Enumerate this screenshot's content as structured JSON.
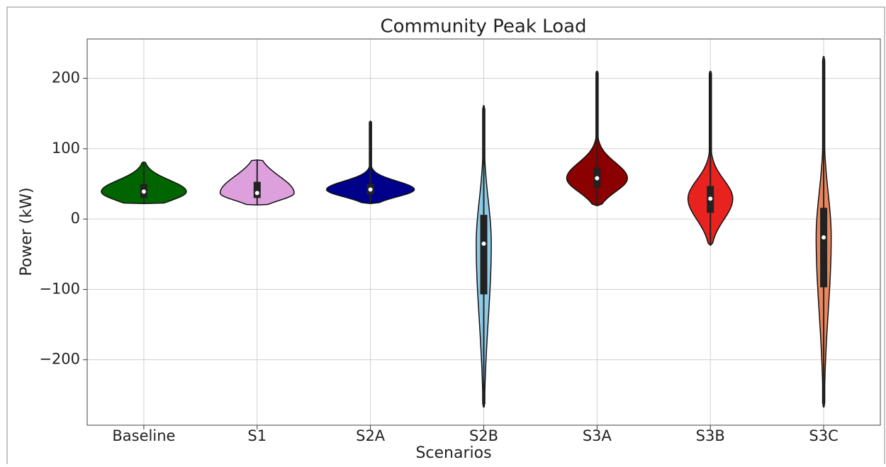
{
  "chart_data": {
    "type": "violin",
    "title": "Community Peak Load",
    "x_label": "Scenarios",
    "y_label": "Power (kW)",
    "categories": [
      "Baseline",
      "S1",
      "S2A",
      "S2B",
      "S3A",
      "S3B",
      "S3C"
    ],
    "violins": [
      {
        "color": "#006400",
        "min": 22,
        "q1": 30,
        "median": 39,
        "q3": 50,
        "max": 81
      },
      {
        "color": "#dda0dd",
        "min": 20,
        "q1": 30,
        "median": 37,
        "q3": 53,
        "max": 84
      },
      {
        "color": "#00008b",
        "min": 22,
        "q1": 35,
        "median": 42,
        "q3": 50,
        "max": 139
      },
      {
        "color": "#8ecae6",
        "min": -267,
        "q1": -107,
        "median": -35,
        "q3": 6,
        "max": 161
      },
      {
        "color": "#8b0000",
        "min": 19,
        "q1": 45,
        "median": 58,
        "q3": 73,
        "max": 210
      },
      {
        "color": "#e8221f",
        "min": -37,
        "q1": 9,
        "median": 29,
        "q3": 47,
        "max": 210
      },
      {
        "color": "#e8875e",
        "min": -267,
        "q1": -97,
        "median": -26,
        "q3": 16,
        "max": 231
      }
    ],
    "ylim": [
      -293,
      256
    ],
    "yticks": [
      {
        "value": -200,
        "label": "−200"
      },
      {
        "value": -100,
        "label": "−100"
      },
      0,
      100,
      200
    ],
    "grid": true
  }
}
